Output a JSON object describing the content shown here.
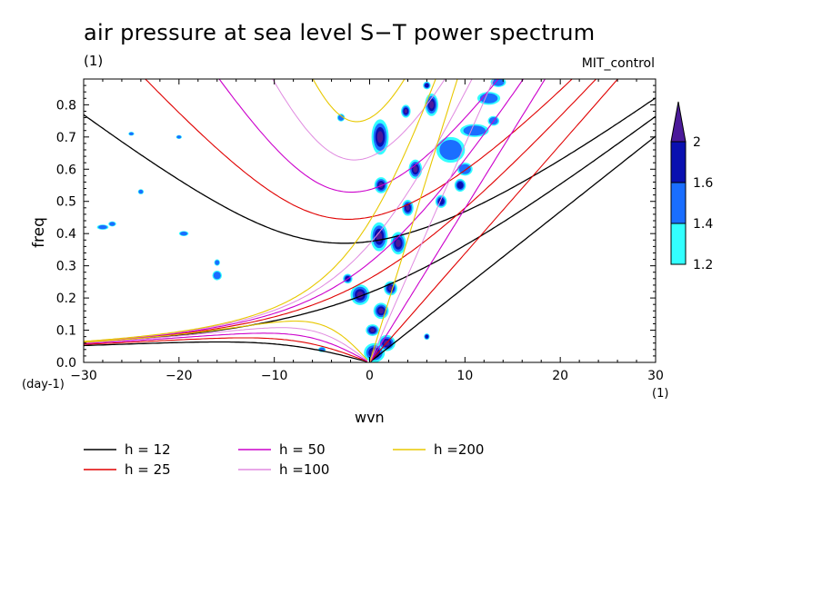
{
  "chart_data": {
    "type": "contour",
    "title": "air pressure at sea level S−T power spectrum",
    "subtitle_left": "(1)",
    "subtitle_right": "MIT_control",
    "xlabel": "wvn",
    "ylabel": "freq",
    "x_unit": "(1)",
    "y_unit": "(day-1)",
    "xlim": [
      -30,
      30
    ],
    "ylim": [
      0.0,
      0.88
    ],
    "xticks": [
      -30,
      -20,
      -10,
      0,
      10,
      20,
      30
    ],
    "xtick_labels": [
      "−30",
      "−20",
      "−10",
      "0",
      "10",
      "20",
      "30"
    ],
    "yticks": [
      0.0,
      0.1,
      0.2,
      0.3,
      0.4,
      0.5,
      0.6,
      0.7,
      0.8
    ],
    "ytick_labels": [
      "0.0",
      "0.1",
      "0.2",
      "0.3",
      "0.4",
      "0.5",
      "0.6",
      "0.7",
      "0.8"
    ],
    "colorbar": {
      "levels": [
        "1.2",
        "1.4",
        "1.6",
        "2"
      ],
      "colors": [
        "#33ffff",
        "#1a6eff",
        "#0a10b0",
        "#4b1a9a"
      ]
    },
    "dispersion_curves": [
      {
        "label": "h = 12",
        "h": 12,
        "color": "#000000",
        "width": 1.3
      },
      {
        "label": "h = 25",
        "h": 25,
        "color": "#e00000",
        "width": 1.1
      },
      {
        "label": "h = 50",
        "h": 50,
        "color": "#cc00cc",
        "width": 1.1
      },
      {
        "label": "h =100",
        "h": 100,
        "color": "#e08ae0",
        "width": 1.0
      },
      {
        "label": "h =200",
        "h": 200,
        "color": "#e8c800",
        "width": 1.1
      }
    ],
    "spectral_peaks": [
      {
        "x": 0.5,
        "y": 0.03,
        "level": 3,
        "rx": 1.1,
        "ry": 0.03
      },
      {
        "x": 1.8,
        "y": 0.06,
        "level": 3,
        "rx": 0.9,
        "ry": 0.025
      },
      {
        "x": 0.3,
        "y": 0.1,
        "level": 3,
        "rx": 0.7,
        "ry": 0.018
      },
      {
        "x": 1.2,
        "y": 0.16,
        "level": 3,
        "rx": 0.8,
        "ry": 0.025
      },
      {
        "x": -1.0,
        "y": 0.21,
        "level": 3,
        "rx": 1.0,
        "ry": 0.032
      },
      {
        "x": 2.2,
        "y": 0.23,
        "level": 3,
        "rx": 0.7,
        "ry": 0.022
      },
      {
        "x": -2.3,
        "y": 0.26,
        "level": 2,
        "rx": 0.5,
        "ry": 0.015
      },
      {
        "x": 1.0,
        "y": 0.39,
        "level": 3,
        "rx": 0.9,
        "ry": 0.045
      },
      {
        "x": 3.0,
        "y": 0.37,
        "level": 3,
        "rx": 0.8,
        "ry": 0.035
      },
      {
        "x": 4.0,
        "y": 0.48,
        "level": 3,
        "rx": 0.6,
        "ry": 0.025
      },
      {
        "x": 1.2,
        "y": 0.55,
        "level": 3,
        "rx": 0.7,
        "ry": 0.025
      },
      {
        "x": 4.8,
        "y": 0.6,
        "level": 3,
        "rx": 0.7,
        "ry": 0.03
      },
      {
        "x": 1.1,
        "y": 0.7,
        "level": 3,
        "rx": 0.9,
        "ry": 0.055
      },
      {
        "x": 6.5,
        "y": 0.8,
        "level": 3,
        "rx": 0.7,
        "ry": 0.035
      },
      {
        "x": 7.5,
        "y": 0.5,
        "level": 2,
        "rx": 0.6,
        "ry": 0.02
      },
      {
        "x": 6.0,
        "y": 0.08,
        "level": 2,
        "rx": 0.3,
        "ry": 0.01
      },
      {
        "x": 3.8,
        "y": 0.78,
        "level": 3,
        "rx": 0.5,
        "ry": 0.02
      },
      {
        "x": 9.5,
        "y": 0.55,
        "level": 2,
        "rx": 0.6,
        "ry": 0.02
      },
      {
        "x": 13.0,
        "y": 0.75,
        "level": 1,
        "rx": 0.6,
        "ry": 0.015
      },
      {
        "x": 8.5,
        "y": 0.66,
        "level": 1,
        "rx": 1.5,
        "ry": 0.04
      },
      {
        "x": 11.0,
        "y": 0.72,
        "level": 1,
        "rx": 1.5,
        "ry": 0.02
      },
      {
        "x": 12.5,
        "y": 0.82,
        "level": 1,
        "rx": 1.2,
        "ry": 0.02
      },
      {
        "x": 10.0,
        "y": 0.6,
        "level": 1,
        "rx": 0.8,
        "ry": 0.02
      },
      {
        "x": -3.0,
        "y": 0.76,
        "level": 1,
        "rx": 0.4,
        "ry": 0.012
      },
      {
        "x": -16.0,
        "y": 0.27,
        "level": 1,
        "rx": 0.5,
        "ry": 0.015
      },
      {
        "x": -16.0,
        "y": 0.31,
        "level": 1,
        "rx": 0.3,
        "ry": 0.01
      },
      {
        "x": -27.0,
        "y": 0.43,
        "level": 1,
        "rx": 0.4,
        "ry": 0.008
      },
      {
        "x": -28.0,
        "y": 0.42,
        "level": 1,
        "rx": 0.6,
        "ry": 0.008
      },
      {
        "x": -19.5,
        "y": 0.4,
        "level": 1,
        "rx": 0.5,
        "ry": 0.008
      },
      {
        "x": -20.0,
        "y": 0.7,
        "level": 1,
        "rx": 0.3,
        "ry": 0.006
      },
      {
        "x": -25.0,
        "y": 0.71,
        "level": 1,
        "rx": 0.3,
        "ry": 0.006
      },
      {
        "x": -24.0,
        "y": 0.53,
        "level": 1,
        "rx": 0.3,
        "ry": 0.008
      },
      {
        "x": -5.0,
        "y": 0.04,
        "level": 1,
        "rx": 0.4,
        "ry": 0.008
      },
      {
        "x": 6.0,
        "y": 0.86,
        "level": 2,
        "rx": 0.4,
        "ry": 0.012
      },
      {
        "x": 13.5,
        "y": 0.87,
        "level": 1,
        "rx": 0.8,
        "ry": 0.015
      }
    ]
  }
}
